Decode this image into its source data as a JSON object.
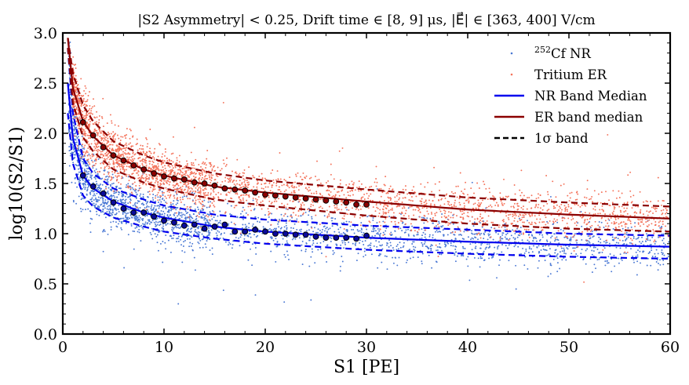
{
  "chart_data": {
    "type": "scatter",
    "title": "|S2 Asymmetry| < 0.25, Drift time ∈ [8, 9] μs,  |E⃗| ∈ [363, 400] V/cm",
    "xlabel": "S1 [PE]",
    "ylabel": "log10(S2/S1)",
    "xlim": [
      0,
      60
    ],
    "ylim": [
      0.0,
      3.0
    ],
    "xticks": [
      "0",
      "10",
      "20",
      "30",
      "40",
      "50",
      "60"
    ],
    "yticks": [
      "0.0",
      "0.5",
      "1.0",
      "1.5",
      "2.0",
      "2.5",
      "3.0"
    ],
    "grid": false,
    "legend_position": "top-right",
    "legend": {
      "nr_scatter": {
        "sup": "252",
        "label": "Cf NR"
      },
      "er_scatter": "Tritium ER",
      "nr_median": "NR Band Median",
      "er_median": "ER band median",
      "band": "1σ band"
    },
    "colors": {
      "nr_points": "#4a78d4",
      "er_points": "#f4725a",
      "nr_line": "#0000ee",
      "er_line": "#8b0000",
      "band_line": "#000000"
    },
    "series": [
      {
        "name": "Cf NR",
        "kind": "points",
        "summary": "dense cloud centred on NR median, approx. S1 0.5–60 PE"
      },
      {
        "name": "Tritium ER",
        "kind": "points",
        "summary": "dense cloud centred on ER median, approx. S1 1–60 PE"
      },
      {
        "name": "NR Band Median",
        "kind": "line",
        "x": [
          0.5,
          1,
          2,
          3,
          5,
          8,
          10,
          15,
          20,
          30,
          40,
          50,
          60
        ],
        "y": [
          2.5,
          1.95,
          1.58,
          1.45,
          1.32,
          1.21,
          1.16,
          1.07,
          1.02,
          0.96,
          0.92,
          0.89,
          0.87
        ]
      },
      {
        "name": "NR 1σ upper",
        "kind": "dashed",
        "x": [
          0.5,
          1,
          2,
          3,
          5,
          8,
          10,
          15,
          20,
          30,
          40,
          50,
          60
        ],
        "y": [
          2.85,
          2.2,
          1.75,
          1.6,
          1.45,
          1.34,
          1.28,
          1.19,
          1.14,
          1.08,
          1.04,
          1.0,
          0.98
        ]
      },
      {
        "name": "NR 1σ lower",
        "kind": "dashed",
        "x": [
          0.5,
          1,
          2,
          3,
          5,
          8,
          10,
          15,
          20,
          30,
          40,
          50,
          60
        ],
        "y": [
          2.2,
          1.7,
          1.38,
          1.27,
          1.16,
          1.07,
          1.02,
          0.95,
          0.9,
          0.84,
          0.8,
          0.77,
          0.75
        ]
      },
      {
        "name": "ER band median",
        "kind": "line",
        "x": [
          0.5,
          1,
          2,
          3,
          5,
          8,
          10,
          15,
          20,
          30,
          40,
          50,
          60
        ],
        "y": [
          2.95,
          2.45,
          2.12,
          1.97,
          1.78,
          1.64,
          1.58,
          1.47,
          1.41,
          1.32,
          1.24,
          1.19,
          1.15
        ]
      },
      {
        "name": "ER 1σ upper",
        "kind": "dashed",
        "x": [
          0.5,
          1,
          2,
          3,
          5,
          8,
          10,
          15,
          20,
          30,
          40,
          50,
          60
        ],
        "y": [
          2.95,
          2.6,
          2.28,
          2.12,
          1.92,
          1.78,
          1.71,
          1.6,
          1.53,
          1.44,
          1.36,
          1.31,
          1.27
        ]
      },
      {
        "name": "ER 1σ lower",
        "kind": "dashed",
        "x": [
          0.5,
          1,
          2,
          3,
          5,
          8,
          10,
          15,
          20,
          30,
          40,
          50,
          60
        ],
        "y": [
          2.85,
          2.3,
          1.96,
          1.82,
          1.64,
          1.51,
          1.45,
          1.34,
          1.28,
          1.18,
          1.1,
          1.05,
          1.02
        ]
      },
      {
        "name": "NR binned medians",
        "kind": "markers",
        "x": [
          2,
          3,
          4,
          5,
          6,
          7,
          8,
          9,
          10,
          11,
          12,
          13,
          14,
          15,
          16,
          17,
          18,
          19,
          20,
          21,
          22,
          23,
          24,
          25,
          26,
          27,
          28,
          29,
          30
        ],
        "y": [
          1.58,
          1.47,
          1.4,
          1.31,
          1.25,
          1.21,
          1.21,
          1.17,
          1.13,
          1.11,
          1.08,
          1.09,
          1.05,
          1.07,
          1.09,
          1.02,
          1.02,
          1.04,
          1.02,
          1.0,
          1.0,
          0.99,
          0.99,
          0.97,
          0.96,
          0.96,
          0.96,
          0.95,
          0.98
        ]
      },
      {
        "name": "ER binned medians",
        "kind": "markers",
        "x": [
          2,
          3,
          4,
          5,
          6,
          7,
          8,
          9,
          10,
          11,
          12,
          13,
          14,
          15,
          16,
          17,
          18,
          19,
          20,
          21,
          22,
          23,
          24,
          25,
          26,
          27,
          28,
          29,
          30
        ],
        "y": [
          2.11,
          1.98,
          1.86,
          1.78,
          1.73,
          1.68,
          1.64,
          1.6,
          1.57,
          1.55,
          1.54,
          1.51,
          1.5,
          1.48,
          1.45,
          1.44,
          1.43,
          1.41,
          1.39,
          1.38,
          1.37,
          1.36,
          1.35,
          1.34,
          1.33,
          1.32,
          1.31,
          1.29,
          1.29
        ]
      }
    ]
  }
}
